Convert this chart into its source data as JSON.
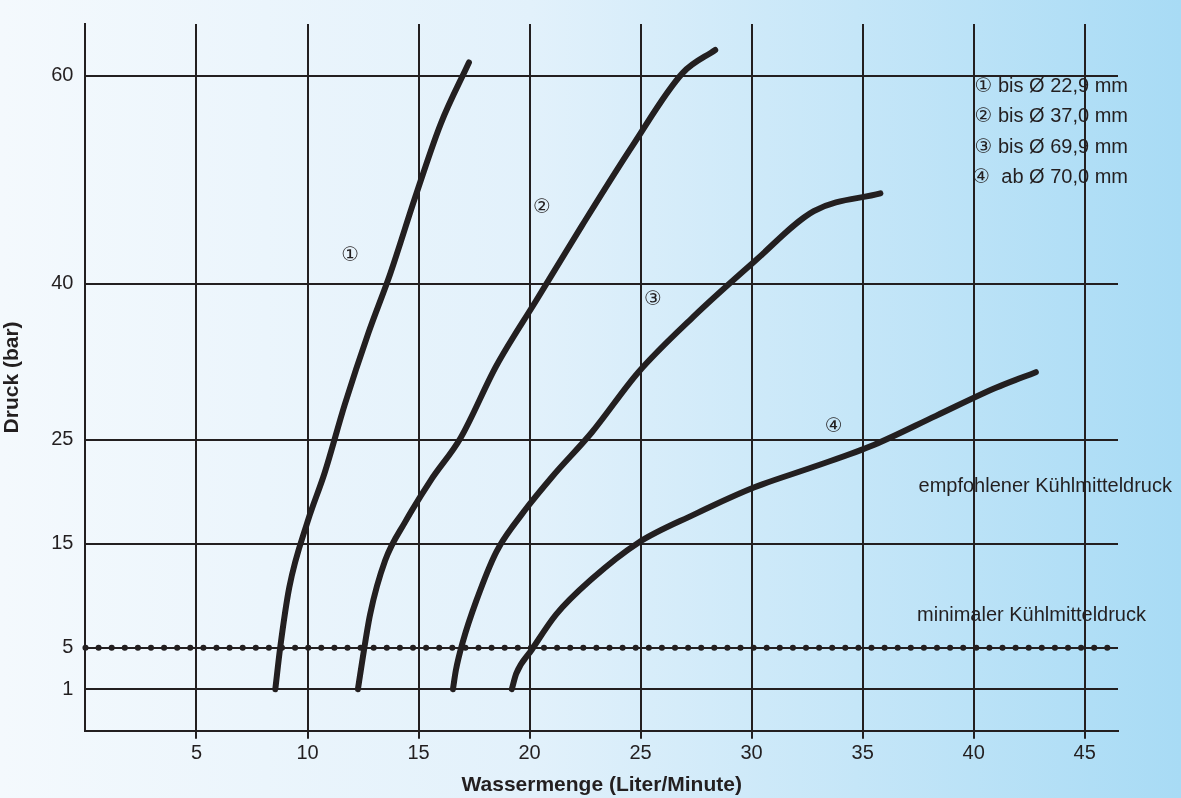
{
  "chart_data": {
    "type": "line",
    "xlabel": "Wassermenge (Liter/Minute)",
    "ylabel": "Druck (bar)",
    "xlim": [
      0,
      46.5
    ],
    "xticks": [
      5,
      10,
      15,
      20,
      25,
      30,
      35,
      40,
      45
    ],
    "ylim": [
      -3,
      65
    ],
    "yticks": [
      1,
      5,
      15,
      25,
      40,
      60
    ],
    "grid": true,
    "legend": false,
    "marker": "none",
    "line_style": "solid",
    "series": [
      {
        "name": "①",
        "color": "#231f20",
        "x": [
          8.55,
          8.77,
          9.18,
          10,
          10.77,
          11.68,
          12.73,
          13.73,
          14.86,
          16,
          17.27
        ],
        "values": [
          1,
          5,
          10.8,
          17.1,
          21.8,
          28.4,
          35.2,
          41,
          48.4,
          55.4,
          61.3
        ]
      },
      {
        "name": "②",
        "color": "#231f20",
        "x": [
          12.27,
          12.45,
          12.82,
          13.5,
          14.4,
          15.55,
          16.9,
          18.5,
          20.3,
          22.36,
          24.64,
          26.9,
          28.36
        ],
        "values": [
          1,
          3.5,
          8.2,
          13.4,
          17.1,
          21.1,
          25.2,
          32.1,
          38.4,
          45.6,
          53.3,
          60.3,
          62.5
        ]
      },
      {
        "name": "③",
        "color": "#231f20",
        "x": [
          16.55,
          16.68,
          17,
          17.6,
          18.5,
          19.64,
          21,
          22.8,
          24.9,
          27.36,
          30.1,
          32.8,
          35.8
        ],
        "values": [
          1,
          2.8,
          5.6,
          9.5,
          14.2,
          17.8,
          21.4,
          25.7,
          31.5,
          36.8,
          42.1,
          47,
          48.7
        ]
      },
      {
        "name": "④",
        "color": "#231f20",
        "x": [
          19.2,
          19.4,
          20.1,
          21.2,
          22.8,
          24.9,
          27.4,
          30.1,
          32.8,
          35.5,
          38.3,
          41,
          42.8
        ],
        "values": [
          1,
          2.5,
          4.8,
          8.2,
          11.6,
          15.1,
          17.8,
          20.4,
          22.4,
          24.5,
          27.3,
          30,
          31.5
        ]
      }
    ],
    "ref_lines": [
      {
        "axis": "y",
        "value": 5,
        "label": "minimaler Kühlmitteldruck",
        "line_style": "dotted",
        "color": "#231f20"
      }
    ],
    "annotations": [
      "① bis Ø 22,9 mm",
      "② bis Ø 37,0 mm",
      "③ bis Ø 69,9 mm",
      "④  ab Ø 70,0 mm",
      "empfohlener Kühlmitteldruck"
    ]
  }
}
